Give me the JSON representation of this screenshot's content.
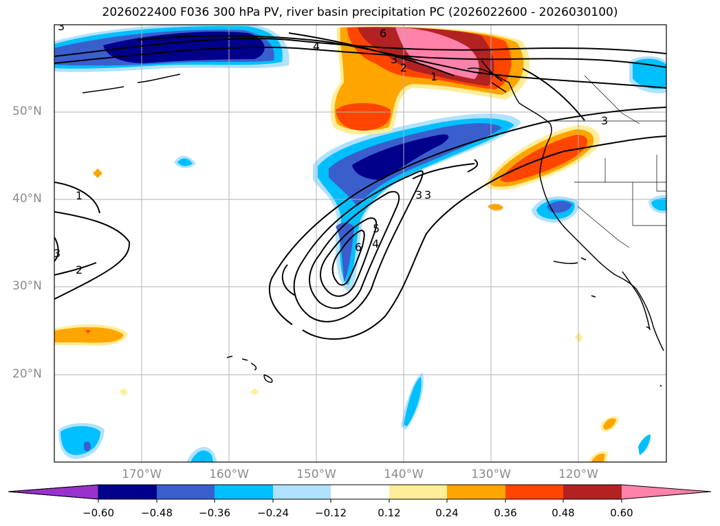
{
  "title": "2026022400 F036 300 hPa PV, river basin precipitation PC (2026022600 - 2026030100)",
  "map": {
    "projection": "PlateCarree",
    "extent_lon": [
      -180,
      -110
    ],
    "extent_lat": [
      10,
      60
    ],
    "lat_labels": [
      "50°N",
      "40°N",
      "30°N",
      "20°N"
    ],
    "lon_labels": [
      "170°W",
      "160°W",
      "150°W",
      "140°W",
      "130°W",
      "120°W"
    ],
    "contour_labels": [
      "6",
      "3",
      "2",
      "1",
      "4",
      "3",
      "3",
      "1",
      "3",
      "2",
      "3",
      "6",
      "5",
      "4",
      "3"
    ],
    "land_color": "#000000",
    "grid_color": "#b0b0b0"
  },
  "colorbar": {
    "colors": [
      "#9932cc",
      "#00008b",
      "#3a5fcd",
      "#00bfff",
      "#b0e2ff",
      "#ffffff",
      "#ffee99",
      "#ffa500",
      "#ff4500",
      "#b22222",
      "#ff82ab"
    ],
    "tick_labels": [
      "−0.60",
      "−0.48",
      "−0.36",
      "−0.24",
      "−0.12",
      "0.12",
      "0.24",
      "0.36",
      "0.48",
      "0.60"
    ],
    "extend": "both"
  }
}
